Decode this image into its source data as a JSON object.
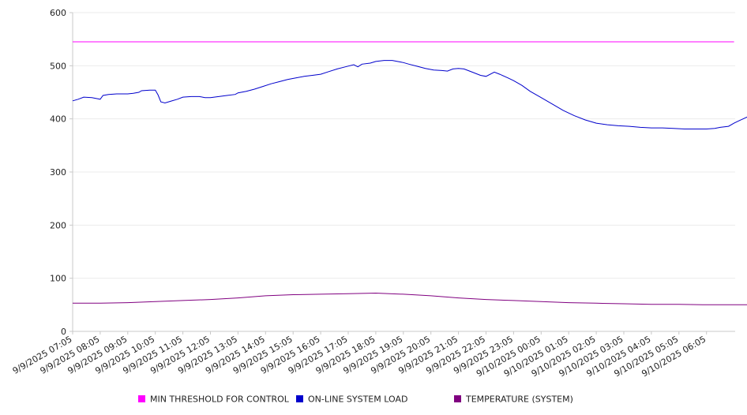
{
  "chart_data": {
    "type": "line",
    "title": "",
    "xlabel": "",
    "ylabel": "",
    "ylim": [
      0,
      600
    ],
    "y_ticks": [
      0,
      100,
      200,
      300,
      400,
      500,
      600
    ],
    "grid": "horizontal",
    "legend_position": "bottom",
    "categories": [
      "9/9/2025 07:05",
      "9/9/2025 08:05",
      "9/9/2025 09:05",
      "9/9/2025 10:05",
      "9/9/2025 11:05",
      "9/9/2025 12:05",
      "9/9/2025 13:05",
      "9/9/2025 14:05",
      "9/9/2025 15:05",
      "9/9/2025 16:05",
      "9/9/2025 17:05",
      "9/9/2025 18:05",
      "9/9/2025 19:05",
      "9/9/2025 20:05",
      "9/9/2025 21:05",
      "9/9/2025 22:05",
      "9/9/2025 23:05",
      "9/10/2025 00:05",
      "9/10/2025 01:05",
      "9/10/2025 02:05",
      "9/10/2025 03:05",
      "9/10/2025 04:05",
      "9/10/2025 05:05",
      "9/10/2025 06:05"
    ],
    "series": [
      {
        "name": "MIN THRESHOLD FOR CONTROL",
        "color": "#ff00ff",
        "points": [
          [
            0,
            545
          ],
          [
            24,
            545
          ]
        ]
      },
      {
        "name": "ON-LINE SYSTEM LOAD",
        "color": "#0000cc",
        "points": [
          [
            0,
            434
          ],
          [
            0.2,
            437
          ],
          [
            0.4,
            441
          ],
          [
            0.7,
            440
          ],
          [
            0.9,
            438
          ],
          [
            1.0,
            437
          ],
          [
            1.1,
            444
          ],
          [
            1.3,
            446
          ],
          [
            1.6,
            447
          ],
          [
            2.0,
            447
          ],
          [
            2.2,
            448
          ],
          [
            2.4,
            450
          ],
          [
            2.5,
            453
          ],
          [
            2.8,
            454
          ],
          [
            3.0,
            454
          ],
          [
            3.1,
            445
          ],
          [
            3.2,
            432
          ],
          [
            3.35,
            430
          ],
          [
            3.55,
            433
          ],
          [
            3.8,
            437
          ],
          [
            4.0,
            441
          ],
          [
            4.3,
            442
          ],
          [
            4.6,
            442
          ],
          [
            4.8,
            440
          ],
          [
            5.0,
            440
          ],
          [
            5.3,
            442
          ],
          [
            5.6,
            444
          ],
          [
            5.9,
            446
          ],
          [
            6.0,
            449
          ],
          [
            6.3,
            452
          ],
          [
            6.6,
            456
          ],
          [
            6.9,
            461
          ],
          [
            7.2,
            466
          ],
          [
            7.5,
            470
          ],
          [
            7.8,
            474
          ],
          [
            8.1,
            477
          ],
          [
            8.4,
            480
          ],
          [
            8.7,
            482
          ],
          [
            9.0,
            484
          ],
          [
            9.3,
            489
          ],
          [
            9.6,
            494
          ],
          [
            9.9,
            498
          ],
          [
            10.2,
            502
          ],
          [
            10.35,
            498
          ],
          [
            10.5,
            503
          ],
          [
            10.8,
            505
          ],
          [
            11.0,
            508
          ],
          [
            11.3,
            510
          ],
          [
            11.6,
            510
          ],
          [
            11.9,
            507
          ],
          [
            12.0,
            506
          ],
          [
            12.2,
            503
          ],
          [
            12.5,
            499
          ],
          [
            12.8,
            495
          ],
          [
            13.1,
            492
          ],
          [
            13.4,
            491
          ],
          [
            13.6,
            490
          ],
          [
            13.8,
            494
          ],
          [
            14.0,
            495
          ],
          [
            14.2,
            494
          ],
          [
            14.5,
            488
          ],
          [
            14.8,
            482
          ],
          [
            15.0,
            480
          ],
          [
            15.3,
            488
          ],
          [
            15.5,
            484
          ],
          [
            15.8,
            477
          ],
          [
            16.0,
            472
          ],
          [
            16.3,
            463
          ],
          [
            16.6,
            452
          ],
          [
            17.0,
            440
          ],
          [
            17.4,
            428
          ],
          [
            17.8,
            416
          ],
          [
            18.2,
            406
          ],
          [
            18.6,
            398
          ],
          [
            19.0,
            392
          ],
          [
            19.4,
            389
          ],
          [
            19.8,
            387
          ],
          [
            20.2,
            386
          ],
          [
            20.6,
            384
          ],
          [
            21.0,
            383
          ],
          [
            21.4,
            383
          ],
          [
            21.8,
            382
          ],
          [
            22.2,
            381
          ],
          [
            22.6,
            381
          ],
          [
            23.0,
            381
          ],
          [
            23.3,
            382
          ],
          [
            23.5,
            384
          ],
          [
            23.8,
            386
          ],
          [
            24.0,
            392
          ],
          [
            24.2,
            397
          ],
          [
            24.5,
            404
          ],
          [
            24.8,
            414
          ],
          [
            25.1,
            424
          ],
          [
            25.4,
            434
          ],
          [
            25.6,
            438
          ],
          [
            25.7,
            440
          ]
        ]
      },
      {
        "name": "TEMPERATURE (SYSTEM)",
        "color": "#800080",
        "points": [
          [
            0,
            53
          ],
          [
            1,
            53
          ],
          [
            2,
            54
          ],
          [
            3,
            56
          ],
          [
            4,
            58
          ],
          [
            5,
            60
          ],
          [
            6,
            63
          ],
          [
            7,
            67
          ],
          [
            8,
            69
          ],
          [
            9,
            70
          ],
          [
            10,
            71
          ],
          [
            11,
            72
          ],
          [
            11.5,
            71
          ],
          [
            12,
            70
          ],
          [
            13,
            67
          ],
          [
            14,
            63
          ],
          [
            15,
            60
          ],
          [
            16,
            58
          ],
          [
            17,
            56
          ],
          [
            18,
            54
          ],
          [
            19,
            53
          ],
          [
            20,
            52
          ],
          [
            21,
            51
          ],
          [
            22,
            51
          ],
          [
            23,
            50
          ],
          [
            24,
            50
          ],
          [
            25,
            50
          ],
          [
            25.7,
            51
          ]
        ]
      }
    ]
  }
}
